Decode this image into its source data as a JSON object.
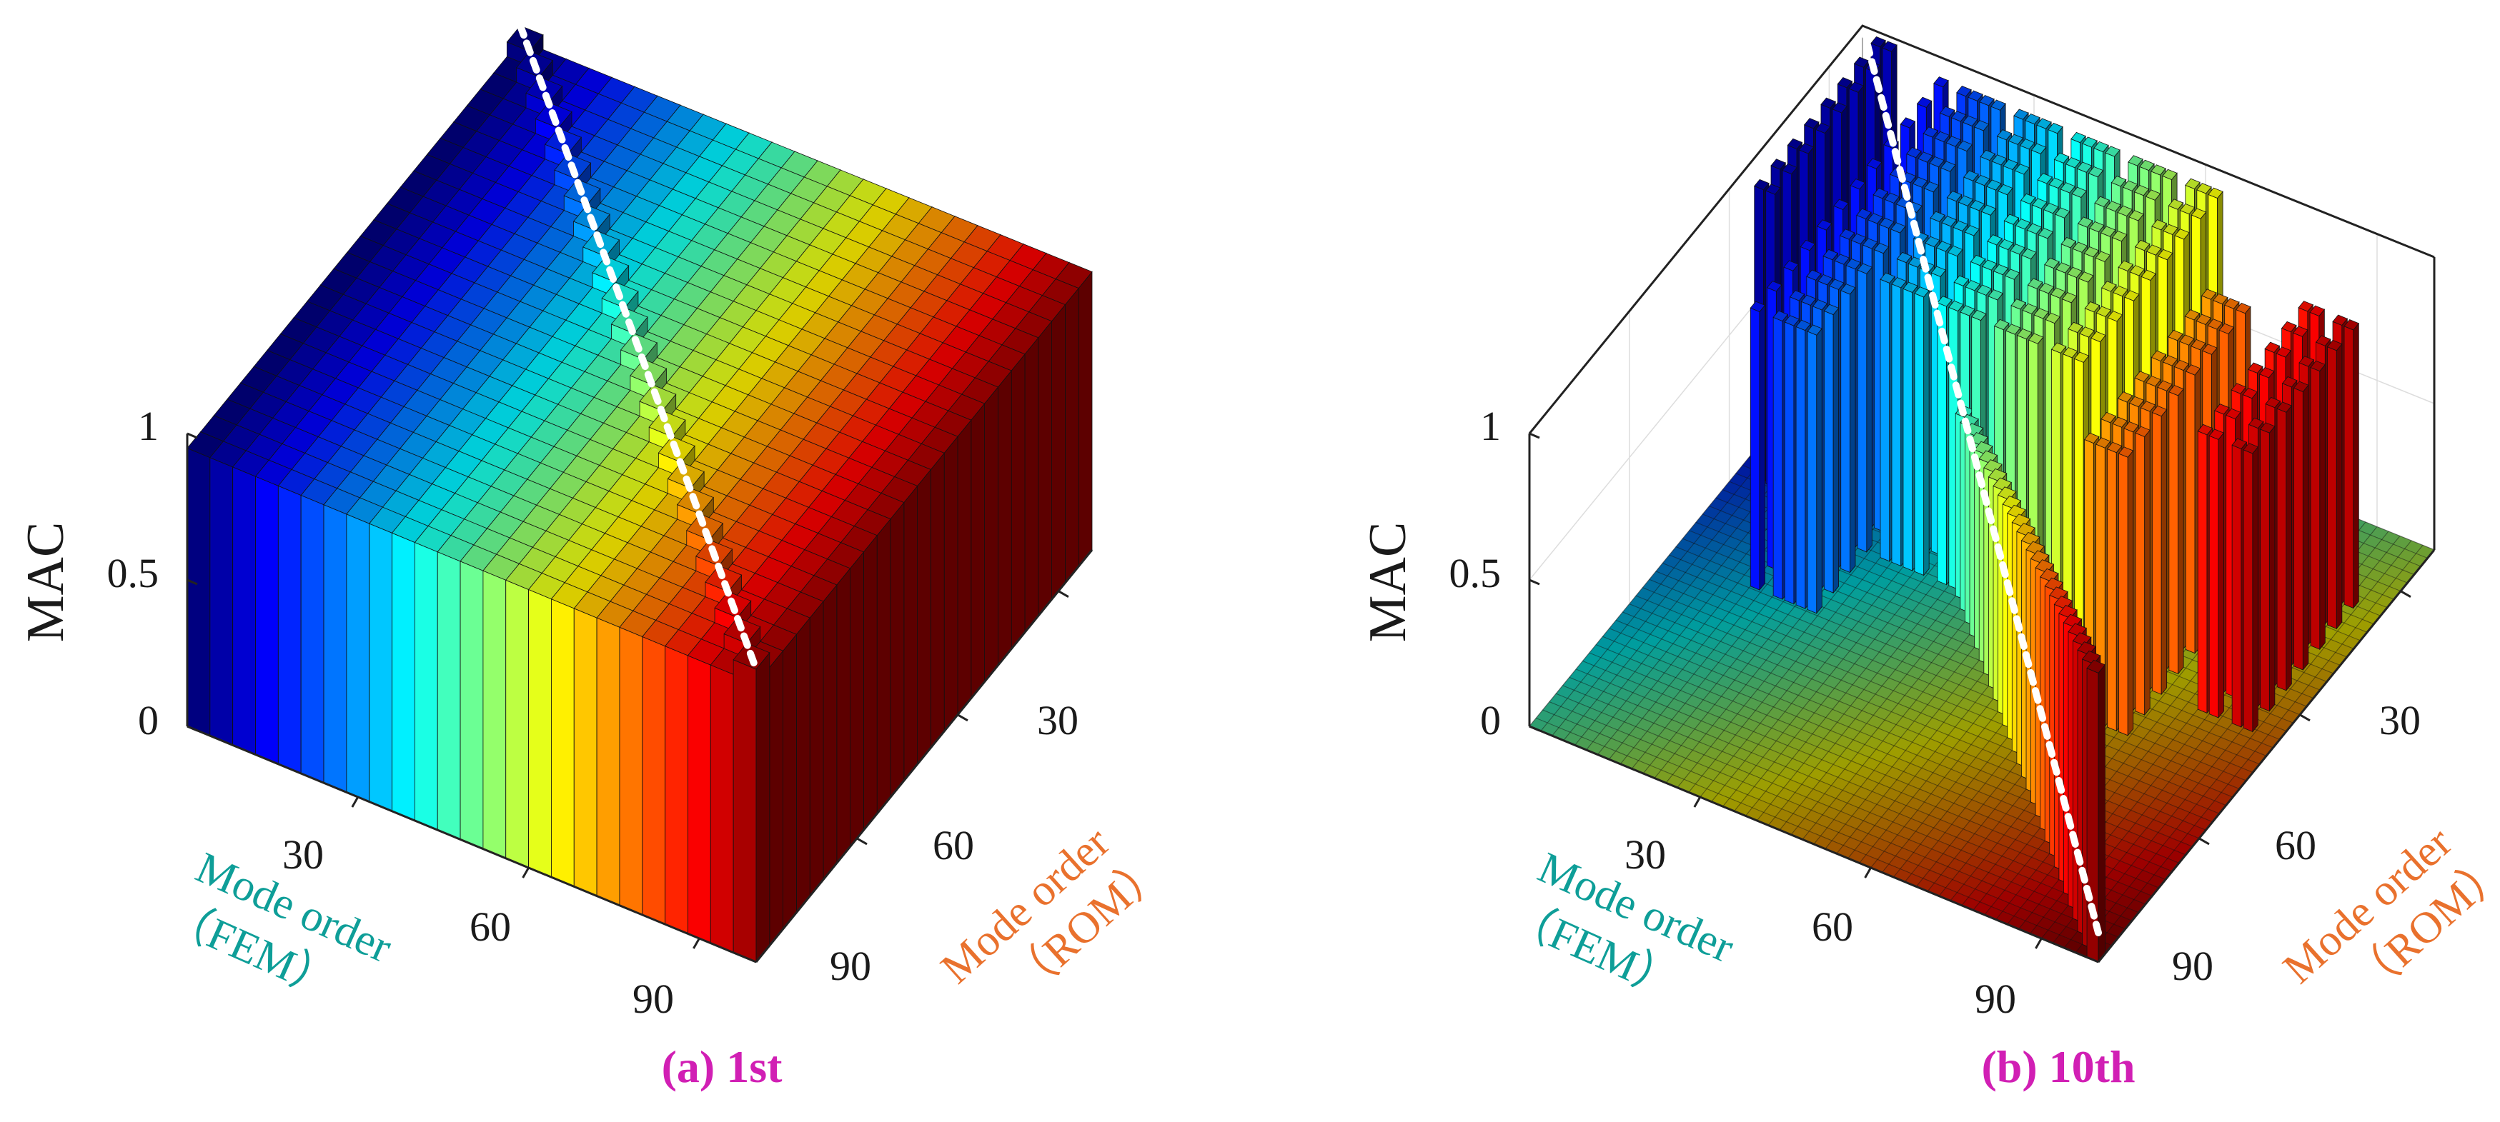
{
  "colors": {
    "fem_label": "#0e9e98",
    "rom_label": "#e9712d",
    "caption": "#d11fb4",
    "axis_text": "#1a1a1a",
    "diagonal": "#ffffff",
    "bar_edge": "#111111"
  },
  "chart_data": [
    {
      "type": "bar3d",
      "title": "(a) 1st",
      "zlabel": "MAC",
      "xlabel": "Mode order\n（FEM）",
      "ylabel": "Mode order\n（ROM）",
      "zticks": [
        "0",
        "0.5",
        "1"
      ],
      "zlim": [
        0,
        1
      ],
      "xticks": [
        "30",
        "60",
        "90"
      ],
      "yticks": [
        "30",
        "60",
        "90"
      ],
      "n_modes": 100,
      "colormap": "jet",
      "description_values": "MAC is approximately 1 for nearly every FEM/ROM mode pair (block of tall bars), with a diagonal marked by a dashed line.",
      "diagonal_mac": 1.0,
      "offdiagonal_mac": 0.95
    },
    {
      "type": "bar3d",
      "title": "(b) 10th",
      "zlabel": "MAC",
      "xlabel": "Mode order\n（FEM）",
      "ylabel": "Mode order\n（ROM）",
      "zticks": [
        "0",
        "0.5",
        "1"
      ],
      "zlim": [
        0,
        1
      ],
      "xticks": [
        "30",
        "60",
        "90"
      ],
      "yticks": [
        "30",
        "60",
        "90"
      ],
      "n_modes": 100,
      "colormap": "jet",
      "diagonal_mac": 1.0,
      "offdiagonal_mac": 0.0,
      "tall_groups": [
        {
          "fem_range": [
            3,
            6
          ],
          "rom_range": [
            1,
            40
          ],
          "mac": 1.0
        },
        {
          "fem_range": [
            14,
            26
          ],
          "rom_range": [
            1,
            60
          ],
          "mac": 0.95
        },
        {
          "fem_range": [
            28,
            62
          ],
          "rom_range": [
            1,
            45
          ],
          "mac": 0.95
        },
        {
          "fem_range": [
            70,
            80
          ],
          "rom_range": [
            20,
            55
          ],
          "mac": 0.95
        },
        {
          "fem_range": [
            86,
            94
          ],
          "rom_range": [
            15,
            45
          ],
          "mac": 0.95
        }
      ]
    }
  ]
}
